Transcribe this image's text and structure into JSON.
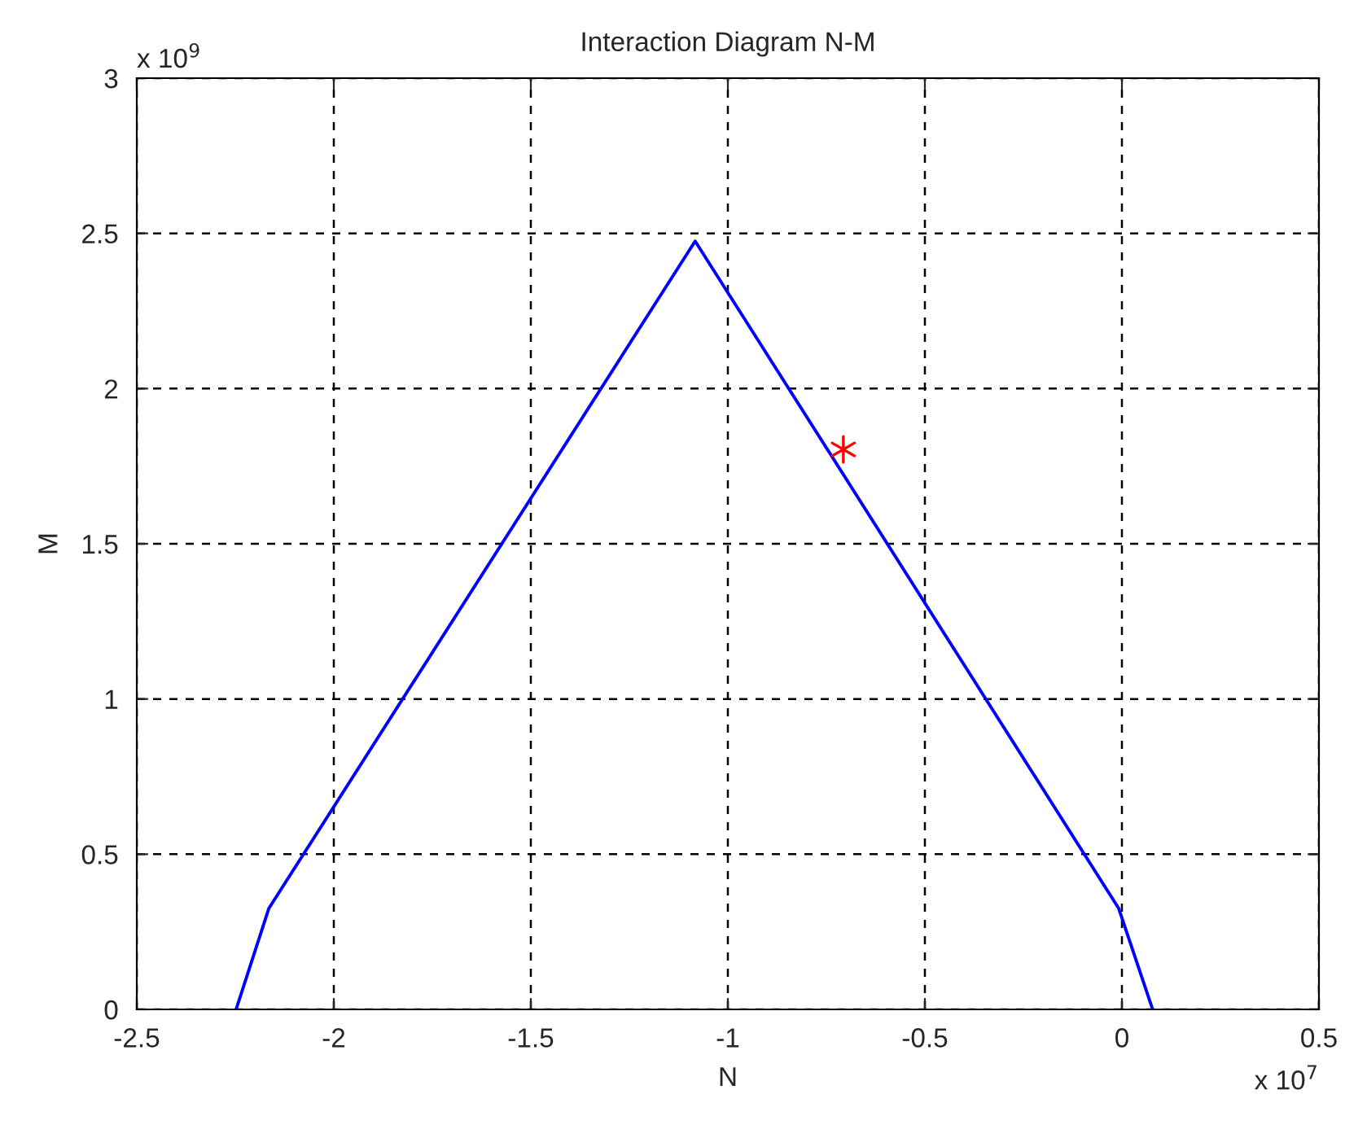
{
  "chart_data": {
    "type": "line",
    "title": "Interaction Diagram N-M",
    "xlabel": "N",
    "ylabel": "M",
    "series": [
      {
        "color": "#0000ff",
        "x": [
          -2.248,
          -2.165,
          -1.083,
          -0.008,
          0.078
        ],
        "values": [
          0,
          0.325,
          2.475,
          0.325,
          0
        ],
        "marker": "none",
        "line_style": "solid"
      },
      {
        "type": "scatter",
        "color": "#ff0000",
        "x": [
          -0.707
        ],
        "values": [
          1.804
        ],
        "marker": "cross"
      }
    ],
    "xlim": [
      -2.5,
      0.5
    ],
    "xticks": [
      -2.5,
      -2,
      -1.5,
      -1,
      -0.5,
      0,
      0.5
    ],
    "ylim": [
      0,
      3
    ],
    "yticks": [
      0,
      0.5,
      1,
      1.5,
      2,
      2.5,
      3
    ],
    "annotations": [
      "x 10$^{9}$",
      "x 10$^{7}$"
    ],
    "grid": true,
    "legend": false
  }
}
